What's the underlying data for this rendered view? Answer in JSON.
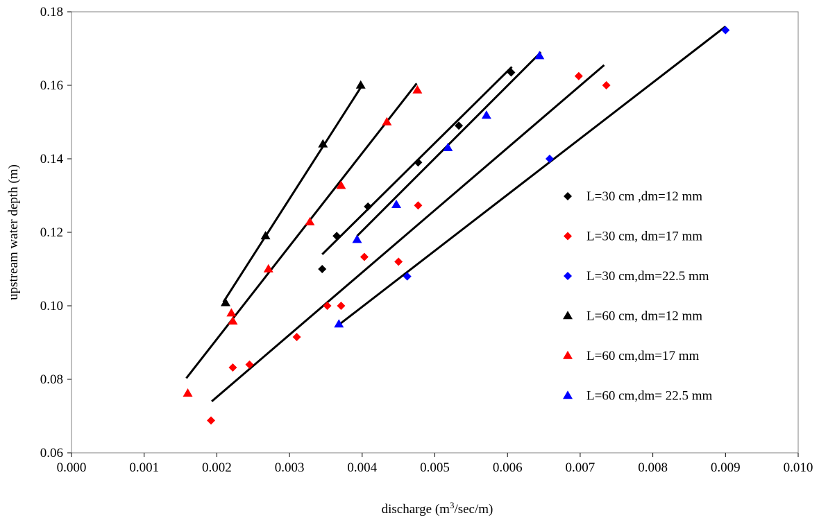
{
  "chart_data": {
    "type": "scatter",
    "title": "",
    "xlabel_parts": {
      "prefix": "discharge (m",
      "sup": "3",
      "suffix": "/sec/m)"
    },
    "ylabel": "upstream water depth (m)",
    "xlim": [
      0.0,
      0.01
    ],
    "ylim": [
      0.06,
      0.18
    ],
    "x_ticks": [
      "0.000",
      "0.001",
      "0.002",
      "0.003",
      "0.004",
      "0.005",
      "0.006",
      "0.007",
      "0.008",
      "0.009",
      "0.010"
    ],
    "y_ticks": [
      "0.06",
      "0.08",
      "0.10",
      "0.12",
      "0.14",
      "0.16",
      "0.18"
    ],
    "grid": false,
    "legend_position": "right",
    "series": [
      {
        "name": "L=30 cm ,dm=12 mm",
        "marker": "diamond",
        "color": "#000000",
        "points": [
          [
            0.00345,
            0.11
          ],
          [
            0.00365,
            0.119
          ],
          [
            0.00408,
            0.127
          ],
          [
            0.00477,
            0.139
          ],
          [
            0.00533,
            0.149
          ],
          [
            0.00605,
            0.1635
          ]
        ]
      },
      {
        "name": "L=30 cm, dm=17 mm",
        "marker": "diamond",
        "color": "#ff0000",
        "points": [
          [
            0.00192,
            0.0688
          ],
          [
            0.00222,
            0.0832
          ],
          [
            0.00245,
            0.084
          ],
          [
            0.0031,
            0.0915
          ],
          [
            0.00352,
            0.1
          ],
          [
            0.00371,
            0.1
          ],
          [
            0.00403,
            0.1133
          ],
          [
            0.0045,
            0.112
          ],
          [
            0.00477,
            0.1273
          ],
          [
            0.00698,
            0.1625
          ],
          [
            0.00736,
            0.16
          ]
        ]
      },
      {
        "name": "L=30 cm,dm=22.5 mm",
        "marker": "diamond",
        "color": "#0000ff",
        "points": [
          [
            0.00462,
            0.108
          ],
          [
            0.00658,
            0.14
          ],
          [
            0.009,
            0.175
          ]
        ]
      },
      {
        "name": "L=60 cm, dm=12 mm",
        "marker": "triangle",
        "color": "#000000",
        "points": [
          [
            0.00212,
            0.1008
          ],
          [
            0.00267,
            0.119
          ],
          [
            0.00346,
            0.144
          ],
          [
            0.00398,
            0.16
          ]
        ]
      },
      {
        "name": "L=60 cm,dm=17 mm",
        "marker": "triangle",
        "color": "#ff0000",
        "points": [
          [
            0.0016,
            0.0762
          ],
          [
            0.0022,
            0.098
          ],
          [
            0.00222,
            0.0958
          ],
          [
            0.00271,
            0.11
          ],
          [
            0.00328,
            0.1228
          ],
          [
            0.00371,
            0.1327
          ],
          [
            0.00434,
            0.15
          ],
          [
            0.00476,
            0.1587
          ]
        ]
      },
      {
        "name": "L=60 cm,dm= 22.5 mm",
        "marker": "triangle",
        "color": "#0000ff",
        "points": [
          [
            0.00368,
            0.095
          ],
          [
            0.00393,
            0.118
          ],
          [
            0.00447,
            0.1275
          ],
          [
            0.00518,
            0.143
          ],
          [
            0.00571,
            0.1518
          ],
          [
            0.00644,
            0.168
          ]
        ]
      }
    ],
    "trend_lines": [
      {
        "color": "#000000",
        "from": [
          0.00209,
          0.101
        ],
        "to": [
          0.004,
          0.16
        ]
      },
      {
        "color": "#000000",
        "from": [
          0.00158,
          0.0803
        ],
        "to": [
          0.00475,
          0.1605
        ]
      },
      {
        "color": "#000000",
        "from": [
          0.00345,
          0.114
        ],
        "to": [
          0.00606,
          0.165
        ]
      },
      {
        "color": "#000000",
        "from": [
          0.00393,
          0.119
        ],
        "to": [
          0.00646,
          0.169
        ]
      },
      {
        "color": "#000000",
        "from": [
          0.00193,
          0.074
        ],
        "to": [
          0.00733,
          0.1655
        ]
      },
      {
        "color": "#000000",
        "from": [
          0.00369,
          0.095
        ],
        "to": [
          0.009,
          0.176
        ]
      }
    ]
  }
}
